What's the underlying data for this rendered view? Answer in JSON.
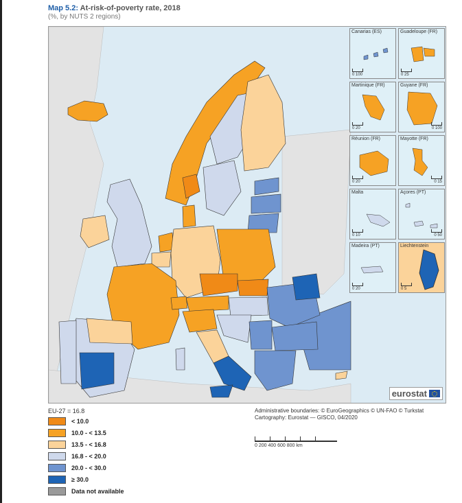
{
  "title_prefix": "Map 5.2:",
  "title_text": "At-risk-of-poverty rate, 2018",
  "subtitle": "(%, by NUTS 2 regions)",
  "legend": {
    "average": "EU-27 = 16.8",
    "items": [
      {
        "label": "< 10.0",
        "color": "#f08a17"
      },
      {
        "label": "10.0 - < 13.5",
        "color": "#f6a224"
      },
      {
        "label": "13.5 - < 16.8",
        "color": "#fbd39a"
      },
      {
        "label": "16.8 - < 20.0",
        "color": "#cfd9ec"
      },
      {
        "label": "20.0 - < 30.0",
        "color": "#6f94cf"
      },
      {
        "label": "≥ 30.0",
        "color": "#1e64b5"
      },
      {
        "label": "Data not available",
        "color": "#9a9a9a"
      }
    ]
  },
  "credits": {
    "line1": "Administrative boundaries: © EuroGeographics © UN-FAO © Turkstat",
    "line2": "Cartography: Eurostat — GISCO, 04/2020"
  },
  "scale": {
    "labels": "0    200   400   600   800 km"
  },
  "logo": "eurostat",
  "insets": [
    {
      "name": "Canarias (ES)",
      "scale": "0 100"
    },
    {
      "name": "Guadeloupe (FR)",
      "scale": "0 25"
    },
    {
      "name": "Martinique (FR)",
      "scale": "0 20"
    },
    {
      "name": "Guyane (FR)",
      "scale": "0 100"
    },
    {
      "name": "Réunion (FR)",
      "scale": "0 20"
    },
    {
      "name": "Mayotte (FR)",
      "scale": "0 15"
    },
    {
      "name": "Malta",
      "scale": "0 10"
    },
    {
      "name": "Açores (PT)",
      "scale": "0 50"
    },
    {
      "name": "Madeira (PT)",
      "scale": "0 20"
    },
    {
      "name": "Liechtenstein",
      "scale": "0 5"
    }
  ],
  "colors": {
    "sea": "#dcebf4",
    "non_eu": "#e3e3e3",
    "border": "#333333"
  }
}
